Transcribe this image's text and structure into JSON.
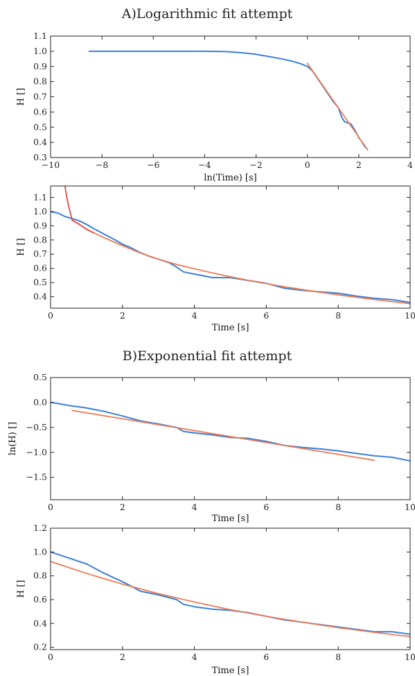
{
  "sections": [
    {
      "title": "A)Logarithmic fit attempt"
    },
    {
      "title": "B)Exponential fit attempt"
    }
  ],
  "colors": {
    "data": "#3a7fd5",
    "fit": "#ec7a55",
    "fit_red": "#e64545",
    "axis": "#222222"
  },
  "chart_data": [
    {
      "type": "line",
      "xlabel": "ln(Time) [s]",
      "ylabel": "H []",
      "xlim": [
        -10,
        4
      ],
      "ylim": [
        0.3,
        1.1
      ],
      "xticks": [
        -10,
        -8,
        -6,
        -4,
        -2,
        0,
        2,
        4
      ],
      "yticks": [
        0.3,
        0.4,
        0.5,
        0.6,
        0.7,
        0.8,
        0.9,
        1.0,
        1.1
      ],
      "ytick_labels": [
        "0.3",
        "0.4",
        "0.5",
        "0.6",
        "0.7",
        "0.8",
        "0.9",
        "1.0",
        "1.1"
      ],
      "series": [
        {
          "role": "data",
          "color": "#3a7fd5",
          "x": [
            -8.5,
            -7,
            -6,
            -5,
            -4,
            -3.2,
            -2.5,
            -2,
            -1.5,
            -1,
            -0.6,
            -0.3,
            0,
            0.2,
            0.4,
            0.6,
            0.8,
            1.0,
            1.2,
            1.35,
            1.45,
            1.55,
            1.7,
            1.85,
            2.0,
            2.1,
            2.2,
            2.3
          ],
          "y": [
            1.0,
            1.0,
            1.0,
            1.0,
            1.0,
            0.998,
            0.99,
            0.98,
            0.965,
            0.95,
            0.935,
            0.92,
            0.9,
            0.87,
            0.82,
            0.77,
            0.72,
            0.67,
            0.63,
            0.56,
            0.535,
            0.53,
            0.52,
            0.48,
            0.43,
            0.41,
            0.38,
            0.36
          ]
        },
        {
          "role": "fit",
          "color": "#ec7a55",
          "x": [
            0,
            2.35
          ],
          "y": [
            0.92,
            0.35
          ]
        }
      ]
    },
    {
      "type": "line",
      "xlabel": "Time [s]",
      "ylabel": "H []",
      "xlim": [
        0,
        10
      ],
      "ylim": [
        0.32,
        1.18
      ],
      "xticks": [
        0,
        2,
        4,
        6,
        8,
        10
      ],
      "yticks": [
        0.4,
        0.5,
        0.6,
        0.7,
        0.8,
        0.9,
        1.0,
        1.1
      ],
      "ytick_labels": [
        "0.4",
        "0.5",
        "0.6",
        "0.7",
        "0.8",
        "0.9",
        "1.0",
        "1.1"
      ],
      "series": [
        {
          "role": "data",
          "color": "#3a7fd5",
          "x": [
            0,
            0.2,
            0.4,
            0.6,
            0.8,
            1.0,
            1.2,
            1.5,
            1.8,
            2.0,
            2.2,
            2.5,
            2.8,
            3.0,
            3.3,
            3.5,
            3.7,
            4.0,
            4.5,
            5.0,
            5.5,
            6.0,
            6.5,
            7.0,
            7.5,
            8.0,
            8.5,
            9.0,
            9.5,
            10.0
          ],
          "y": [
            1.0,
            0.99,
            0.965,
            0.95,
            0.935,
            0.91,
            0.88,
            0.84,
            0.8,
            0.77,
            0.75,
            0.71,
            0.68,
            0.665,
            0.64,
            0.61,
            0.575,
            0.56,
            0.535,
            0.535,
            0.515,
            0.495,
            0.46,
            0.445,
            0.435,
            0.425,
            0.405,
            0.39,
            0.38,
            0.36
          ]
        },
        {
          "role": "fit",
          "color": "#ec7a55",
          "x": [
            0.6,
            0.8,
            1.0,
            1.2,
            1.5,
            2.0,
            2.5,
            3.0,
            3.5,
            4.0,
            4.5,
            5.0,
            5.5,
            6.0,
            6.5,
            7.0,
            7.5,
            8.0,
            8.5,
            9.0,
            9.5,
            10.0
          ],
          "y": [
            0.94,
            0.91,
            0.875,
            0.85,
            0.815,
            0.76,
            0.7075,
            0.665,
            0.628,
            0.597,
            0.568,
            0.541,
            0.516,
            0.493,
            0.471,
            0.451,
            0.432,
            0.414,
            0.397,
            0.381,
            0.366,
            0.352
          ]
        },
        {
          "role": "fit-extension",
          "color": "#e64545",
          "x": [
            0.35,
            0.4,
            0.45,
            0.5,
            0.55,
            0.6,
            0.7,
            0.8,
            1.0,
            1.2
          ],
          "y": [
            1.25,
            1.18,
            1.1,
            1.04,
            0.99,
            0.94,
            0.925,
            0.91,
            0.875,
            0.85
          ]
        }
      ]
    },
    {
      "type": "line",
      "xlabel": "Time [s]",
      "ylabel": "ln(H) []",
      "xlim": [
        0,
        10
      ],
      "ylim": [
        -1.95,
        0.5
      ],
      "xticks": [
        0,
        2,
        4,
        6,
        8,
        10
      ],
      "yticks": [
        -1.5,
        -1.0,
        -0.5,
        0.0,
        0.5
      ],
      "ytick_labels": [
        "−1.5",
        "−1.0",
        "−0.5",
        "0.0",
        "0.5"
      ],
      "series": [
        {
          "role": "data",
          "color": "#3a7fd5",
          "x": [
            0,
            0.2,
            0.5,
            1.0,
            1.5,
            2.0,
            2.5,
            3.0,
            3.5,
            3.7,
            4.0,
            4.5,
            5.0,
            5.5,
            6.0,
            6.5,
            7.0,
            7.5,
            8.0,
            8.5,
            9.0,
            9.5,
            10.0
          ],
          "y": [
            0.0,
            -0.02,
            -0.06,
            -0.11,
            -0.18,
            -0.27,
            -0.37,
            -0.43,
            -0.5,
            -0.58,
            -0.61,
            -0.65,
            -0.7,
            -0.72,
            -0.78,
            -0.86,
            -0.9,
            -0.93,
            -0.97,
            -1.02,
            -1.07,
            -1.1,
            -1.17
          ]
        },
        {
          "role": "fit",
          "color": "#ec7a55",
          "x": [
            0.6,
            9.0
          ],
          "y": [
            -0.16,
            -1.16
          ]
        }
      ]
    },
    {
      "type": "line",
      "xlabel": "Time [s]",
      "ylabel": "H []",
      "xlim": [
        0,
        10
      ],
      "ylim": [
        0.18,
        1.2
      ],
      "xticks": [
        0,
        2,
        4,
        6,
        8,
        10
      ],
      "yticks": [
        0.2,
        0.4,
        0.6,
        0.8,
        1.0,
        1.2
      ],
      "ytick_labels": [
        "0.2",
        "0.4",
        "0.6",
        "0.8",
        "1.0",
        "1.2"
      ],
      "series": [
        {
          "role": "data",
          "color": "#3a7fd5",
          "x": [
            0,
            0.2,
            0.5,
            1.0,
            1.5,
            2.0,
            2.2,
            2.5,
            3.0,
            3.5,
            3.7,
            4.0,
            4.5,
            5.0,
            5.5,
            6.0,
            6.5,
            7.0,
            7.5,
            8.0,
            8.5,
            9.0,
            9.5,
            10.0
          ],
          "y": [
            1.0,
            0.98,
            0.95,
            0.9,
            0.82,
            0.75,
            0.72,
            0.67,
            0.64,
            0.6,
            0.56,
            0.54,
            0.52,
            0.51,
            0.49,
            0.46,
            0.43,
            0.41,
            0.39,
            0.37,
            0.35,
            0.33,
            0.33,
            0.31
          ]
        },
        {
          "role": "fit",
          "color": "#ec7a55",
          "x": [
            0,
            1,
            2,
            3,
            4,
            5,
            6,
            7,
            8,
            9,
            10
          ],
          "y": [
            0.92,
            0.82,
            0.73,
            0.65,
            0.58,
            0.515,
            0.46,
            0.41,
            0.365,
            0.325,
            0.29
          ]
        }
      ]
    }
  ]
}
